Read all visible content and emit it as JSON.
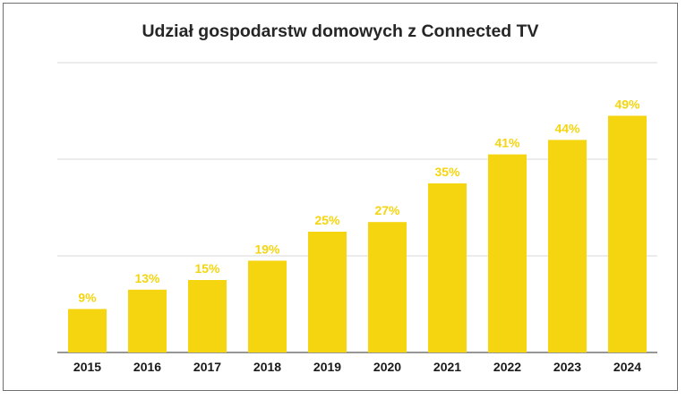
{
  "chart_data": {
    "type": "bar",
    "title": "Udział gospodarstw domowych z Connected TV",
    "categories": [
      "2015",
      "2016",
      "2017",
      "2018",
      "2019",
      "2020",
      "2021",
      "2022",
      "2023",
      "2024"
    ],
    "values": [
      9,
      13,
      15,
      19,
      25,
      27,
      35,
      41,
      44,
      49
    ],
    "value_labels": [
      "9%",
      "13%",
      "15%",
      "19%",
      "25%",
      "27%",
      "35%",
      "41%",
      "44%",
      "49%"
    ],
    "xlabel": "",
    "ylabel": "",
    "ylim": [
      0,
      60
    ],
    "gridlines": [
      0,
      20,
      40,
      60
    ],
    "grid": true,
    "show_y_tick_labels": false,
    "legend": "none",
    "colors": {
      "bar": "#f5d50f",
      "label": "#f5d50f",
      "grid": "#d9d9d9",
      "axis": "#595959"
    }
  }
}
